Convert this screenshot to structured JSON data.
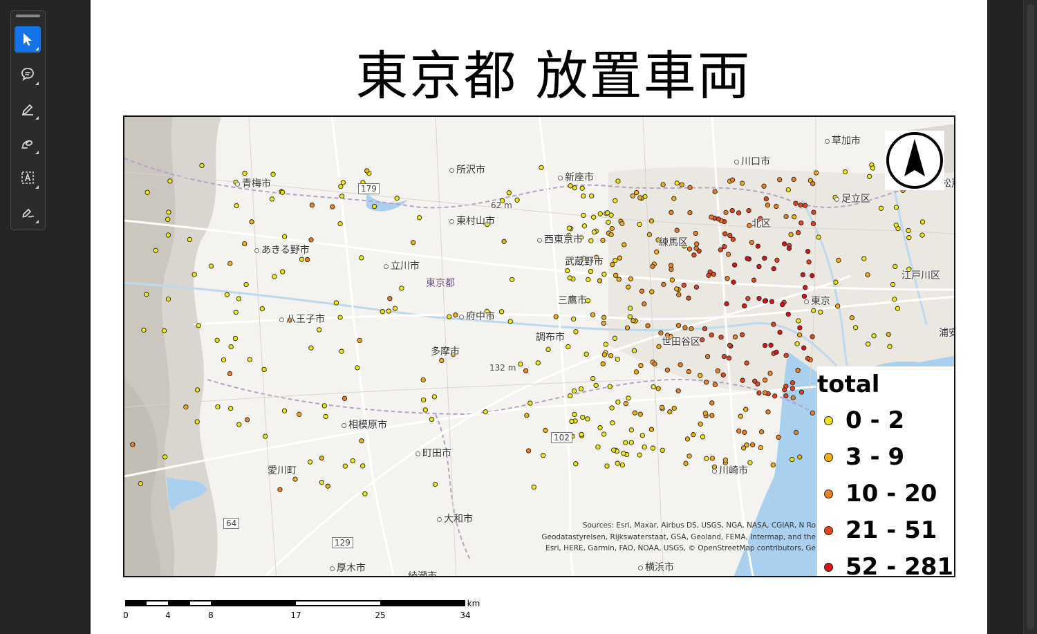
{
  "toolbar": {
    "tools": [
      {
        "name": "select-tool",
        "icon": "arrow-pointer-icon",
        "active": true
      },
      {
        "name": "comment-tool",
        "icon": "comment-bubble-icon",
        "active": false
      },
      {
        "name": "highlight-tool",
        "icon": "pen-icon",
        "active": false
      },
      {
        "name": "draw-tool",
        "icon": "freehand-loop-icon",
        "active": false
      },
      {
        "name": "text-recognition-tool",
        "icon": "text-box-icon",
        "active": false
      },
      {
        "name": "sign-tool",
        "icon": "signature-pen-icon",
        "active": false
      }
    ],
    "accent": "#1473e6"
  },
  "map": {
    "title": "東京都 放置車両",
    "places": {
      "ome": "青梅市",
      "tokorozawa": "所沢市",
      "niiza": "新座市",
      "kawaguchi": "川口市",
      "soka": "草加市",
      "higashimurayama": "東村山市",
      "nishitokyo": "西東京市",
      "nerima": "練馬区",
      "kita": "北区",
      "adachi": "足立区",
      "matsudo": "松戸",
      "akiruno": "あきる野市",
      "tachikawa": "立川市",
      "musashino": "武蔵野市",
      "edogawa": "江戸川区",
      "tokyoto": "東京都",
      "mitaka": "三鷹市",
      "tokyo": "東京",
      "hachioji": "八王子市",
      "fuchu": "府中市",
      "chofu": "調布市",
      "setagaya": "世田谷区",
      "urayasu": "浦安",
      "tama": "多摩市",
      "sagamihara": "相模原市",
      "machida": "町田市",
      "aikawa": "愛川町",
      "kawasaki": "川崎市",
      "yamato": "大和市",
      "atsugi": "厚木市",
      "ayase": "綾瀬市",
      "yokohama": "横浜市",
      "elev62": "62 m",
      "elev132": "132 m",
      "r179": "179",
      "r102": "102",
      "r64": "64",
      "r129": "129"
    },
    "attribution": "Sources: Esri, Maxar, Airbus DS, USGS, NGA, NASA, CGIAR, N Ro\nGeodatastyrelsen, Rijkswaterstaat, GSA, Geoland, FEMA, Intermap, and the\nEsri, HERE, Garmin, FAO, NOAA, USGS, © OpenStreetMap contributors, Ge"
  },
  "legend": {
    "title": "total",
    "classes": [
      {
        "label": "0 - 2",
        "color": "#f3e60f"
      },
      {
        "label": "3 - 9",
        "color": "#f2ae12"
      },
      {
        "label": "10 - 20",
        "color": "#ee7f1c"
      },
      {
        "label": "21 - 51",
        "color": "#e5451c"
      },
      {
        "label": "52 - 281",
        "color": "#dd1313"
      }
    ]
  },
  "north_arrow": {
    "icon": "north-arrow-icon"
  },
  "scalebar": {
    "unit": "km",
    "ticks": [
      "0",
      "4",
      "8",
      "17",
      "25",
      "34"
    ]
  }
}
